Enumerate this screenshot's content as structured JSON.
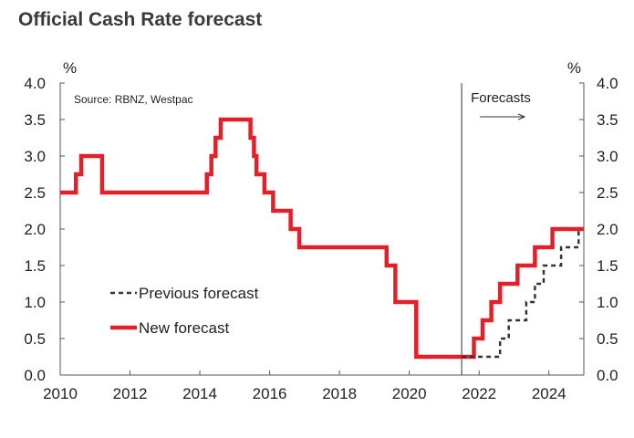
{
  "chart_data": {
    "type": "line",
    "title": "Official Cash Rate forecast",
    "source": "Source: RBNZ, Westpac",
    "ylabel_left": "%",
    "ylabel_right": "%",
    "ylim": [
      0,
      4
    ],
    "xlim": [
      2010,
      2025
    ],
    "y_ticks": [
      "0.0",
      "0.5",
      "1.0",
      "1.5",
      "2.0",
      "2.5",
      "3.0",
      "3.5",
      "4.0"
    ],
    "x_ticks": [
      "2010",
      "2012",
      "2014",
      "2016",
      "2018",
      "2020",
      "2022",
      "2024"
    ],
    "forecast_start": 2021.5,
    "forecast_label": "Forecasts",
    "forecast_arrow": "→",
    "series": [
      {
        "name": "New forecast",
        "color": "#e3202a",
        "style": "solid",
        "points": [
          [
            2010.0,
            2.5
          ],
          [
            2010.45,
            2.5
          ],
          [
            2010.45,
            2.75
          ],
          [
            2010.6,
            2.75
          ],
          [
            2010.6,
            3.0
          ],
          [
            2011.2,
            3.0
          ],
          [
            2011.2,
            2.5
          ],
          [
            2014.2,
            2.5
          ],
          [
            2014.2,
            2.75
          ],
          [
            2014.33,
            2.75
          ],
          [
            2014.33,
            3.0
          ],
          [
            2014.45,
            3.0
          ],
          [
            2014.45,
            3.25
          ],
          [
            2014.6,
            3.25
          ],
          [
            2014.6,
            3.5
          ],
          [
            2015.45,
            3.5
          ],
          [
            2015.45,
            3.25
          ],
          [
            2015.55,
            3.25
          ],
          [
            2015.55,
            3.0
          ],
          [
            2015.62,
            3.0
          ],
          [
            2015.62,
            2.75
          ],
          [
            2015.85,
            2.75
          ],
          [
            2015.85,
            2.5
          ],
          [
            2016.1,
            2.5
          ],
          [
            2016.1,
            2.25
          ],
          [
            2016.6,
            2.25
          ],
          [
            2016.6,
            2.0
          ],
          [
            2016.85,
            2.0
          ],
          [
            2016.85,
            1.75
          ],
          [
            2019.35,
            1.75
          ],
          [
            2019.35,
            1.5
          ],
          [
            2019.6,
            1.5
          ],
          [
            2019.6,
            1.0
          ],
          [
            2020.2,
            1.0
          ],
          [
            2020.2,
            0.25
          ],
          [
            2021.85,
            0.25
          ],
          [
            2021.85,
            0.5
          ],
          [
            2022.1,
            0.5
          ],
          [
            2022.1,
            0.75
          ],
          [
            2022.35,
            0.75
          ],
          [
            2022.35,
            1.0
          ],
          [
            2022.6,
            1.0
          ],
          [
            2022.6,
            1.25
          ],
          [
            2023.1,
            1.25
          ],
          [
            2023.1,
            1.5
          ],
          [
            2023.6,
            1.5
          ],
          [
            2023.6,
            1.75
          ],
          [
            2024.1,
            1.75
          ],
          [
            2024.1,
            2.0
          ],
          [
            2025.0,
            2.0
          ]
        ]
      },
      {
        "name": "Previous forecast",
        "color": "#333333",
        "style": "dashed",
        "points": [
          [
            2021.5,
            0.25
          ],
          [
            2022.6,
            0.25
          ],
          [
            2022.6,
            0.5
          ],
          [
            2022.85,
            0.5
          ],
          [
            2022.85,
            0.75
          ],
          [
            2023.35,
            0.75
          ],
          [
            2023.35,
            1.0
          ],
          [
            2023.6,
            1.0
          ],
          [
            2023.6,
            1.25
          ],
          [
            2023.85,
            1.25
          ],
          [
            2023.85,
            1.5
          ],
          [
            2024.35,
            1.5
          ],
          [
            2024.35,
            1.75
          ],
          [
            2024.85,
            1.75
          ],
          [
            2024.85,
            2.0
          ]
        ]
      }
    ],
    "legend": [
      {
        "label": "Previous forecast",
        "series": "Previous forecast"
      },
      {
        "label": "New forecast",
        "series": "New forecast"
      }
    ]
  }
}
